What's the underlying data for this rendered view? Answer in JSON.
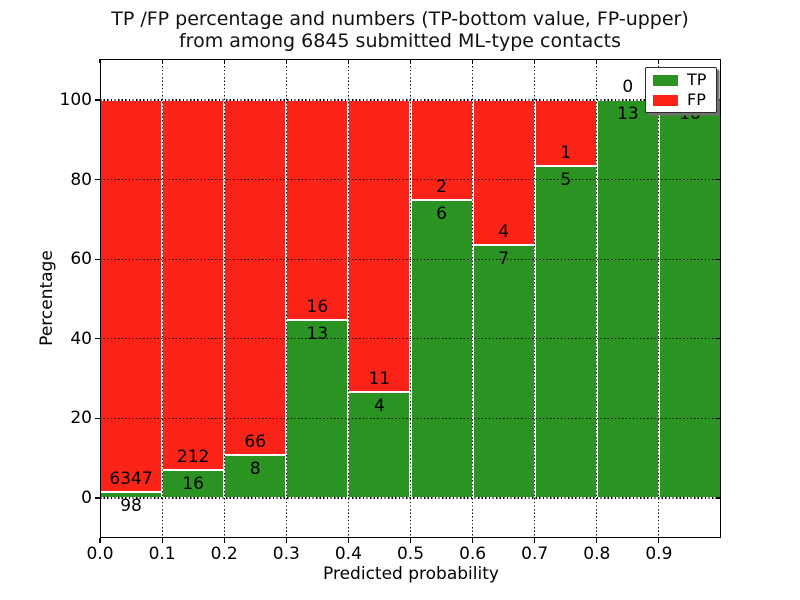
{
  "figure": {
    "title_line1": "TP /FP percentage and numbers (TP-bottom value, FP-upper)",
    "title_line2": "from among 6845 submitted ML-type contacts",
    "xlabel": "Predicted probability",
    "ylabel": "Percentage",
    "total_contacts": 6845
  },
  "legend": {
    "items": [
      {
        "label": "TP",
        "color": "#2b9322"
      },
      {
        "label": "FP",
        "color": "#fb2318"
      }
    ]
  },
  "colors": {
    "tp": "#2b9322",
    "fp": "#fb2318",
    "background": "#ffffff",
    "text": "#000000",
    "grid": "#000000"
  },
  "chart_data": {
    "type": "bar",
    "stacked": true,
    "normalized_to_percent": true,
    "title": "TP /FP percentage and numbers (TP-bottom value, FP-upper) from among 6845 submitted ML-type contacts",
    "xlabel": "Predicted probability",
    "ylabel": "Percentage",
    "bin_edges": [
      0.0,
      0.1,
      0.2,
      0.3,
      0.4,
      0.5,
      0.6,
      0.7,
      0.8,
      0.9,
      1.0
    ],
    "series": [
      {
        "name": "TP",
        "counts": [
          98,
          16,
          8,
          13,
          4,
          6,
          7,
          5,
          13,
          16
        ]
      },
      {
        "name": "FP",
        "counts": [
          6347,
          212,
          66,
          16,
          11,
          2,
          4,
          1,
          0,
          0
        ]
      }
    ],
    "tp_percent_heights": [
      1.52,
      7.02,
      10.81,
      44.83,
      26.67,
      75.0,
      63.64,
      83.33,
      100.0,
      100.0
    ],
    "x_tick_labels": [
      "0.0",
      "0.1",
      "0.2",
      "0.3",
      "0.4",
      "0.5",
      "0.6",
      "0.7",
      "0.8",
      "0.9"
    ],
    "y_tick_values": [
      0,
      20,
      40,
      60,
      80,
      100
    ],
    "xlim": [
      0.0,
      1.0
    ],
    "ylim": [
      -10,
      110
    ],
    "grid": true,
    "legend_position": "upper right"
  }
}
